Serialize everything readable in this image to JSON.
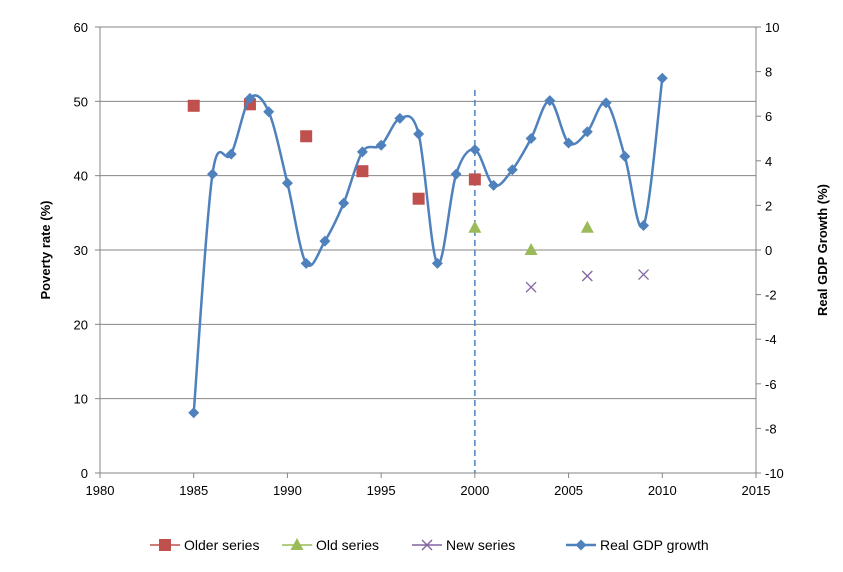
{
  "chart_data": {
    "type": "scatter",
    "xlim": [
      1980,
      2015
    ],
    "x_ticks": [
      "1980",
      "1985",
      "1990",
      "1995",
      "2000",
      "2005",
      "2010",
      "2015"
    ],
    "y_left": {
      "label": "Poverty rate (%)",
      "lim": [
        0,
        60
      ],
      "ticks": [
        "0",
        "10",
        "20",
        "30",
        "40",
        "50",
        "60"
      ]
    },
    "y_right": {
      "label": "Real GDP Growth (%)",
      "lim": [
        -10,
        10
      ],
      "ticks": [
        "-10",
        "-8",
        "-6",
        "-4",
        "-2",
        "0",
        "2",
        "4",
        "6",
        "8",
        "10"
      ]
    },
    "grid": "horizontal",
    "legend_position": "bottom",
    "reference_line": {
      "x": 2000,
      "style": "dashed"
    },
    "series": [
      {
        "name": "Older series",
        "axis": "left",
        "marker": "square",
        "color": "#c0504d",
        "x": [
          1985,
          1988,
          1991,
          1994,
          1997,
          2000
        ],
        "y": [
          49.4,
          49.6,
          45.3,
          40.6,
          36.9,
          39.5
        ]
      },
      {
        "name": "Old series",
        "axis": "left",
        "marker": "triangle",
        "color": "#9bbb59",
        "x": [
          2000,
          2003,
          2006
        ],
        "y": [
          33.0,
          30.0,
          33.0
        ]
      },
      {
        "name": "New series",
        "axis": "left",
        "marker": "x",
        "color": "#8064a2",
        "x": [
          2003,
          2006,
          2009
        ],
        "y": [
          25.0,
          26.5,
          26.7
        ]
      },
      {
        "name": "Real GDP growth",
        "axis": "right",
        "marker": "diamond",
        "color": "#4f81bd",
        "line": "smooth",
        "x": [
          1985,
          1986,
          1987,
          1988,
          1989,
          1990,
          1991,
          1992,
          1993,
          1994,
          1995,
          1996,
          1997,
          1998,
          1999,
          2000,
          2001,
          2002,
          2003,
          2004,
          2005,
          2006,
          2007,
          2008,
          2009,
          2010
        ],
        "y": [
          -7.3,
          3.4,
          4.3,
          6.8,
          6.2,
          3.0,
          -0.6,
          0.4,
          2.1,
          4.4,
          4.7,
          5.9,
          5.2,
          -0.6,
          3.4,
          4.5,
          2.9,
          3.6,
          5.0,
          6.7,
          4.8,
          5.3,
          6.6,
          4.2,
          1.1,
          7.7
        ]
      }
    ]
  }
}
